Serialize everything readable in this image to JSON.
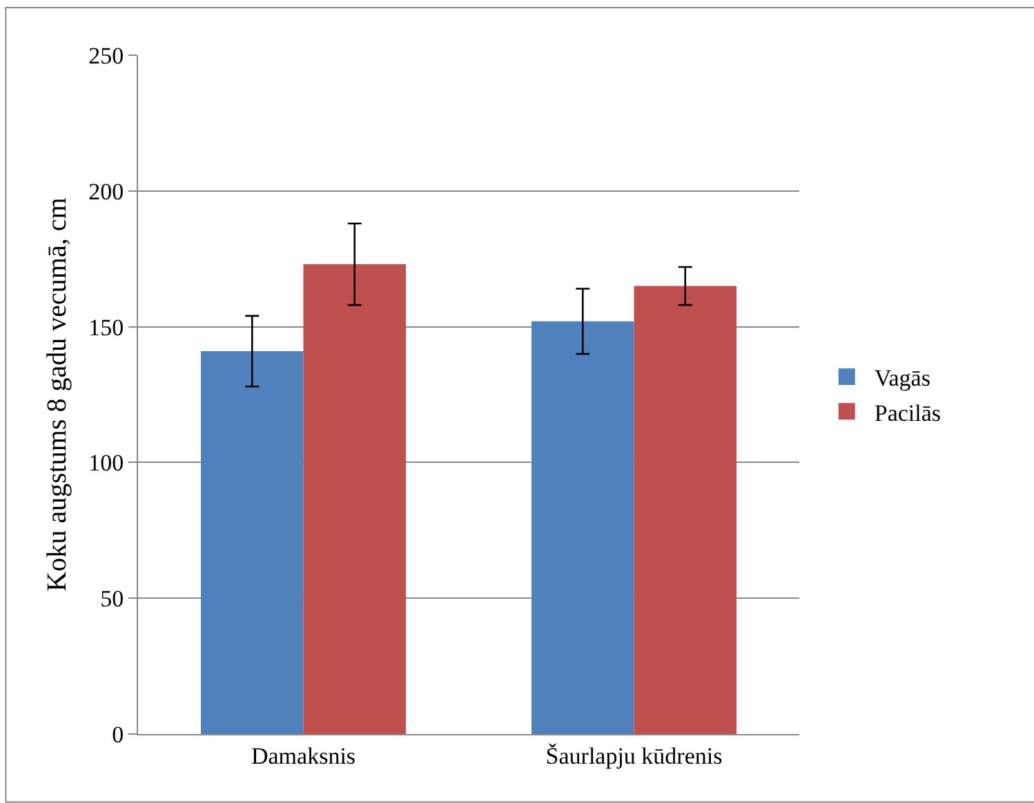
{
  "chart_data": {
    "type": "bar",
    "ylabel": "Koku augstums 8 gadu vecumā, cm",
    "categories": [
      "Damaksnis",
      "Šaurlapju kūdrenis"
    ],
    "series": [
      {
        "name": "Vagās",
        "color": "#4f81bd",
        "values": [
          141,
          152
        ],
        "errors": [
          13,
          12
        ]
      },
      {
        "name": "Pacilās",
        "color": "#c0504d",
        "values": [
          173,
          165
        ],
        "errors": [
          15,
          7
        ]
      }
    ],
    "ylim": [
      0,
      250
    ],
    "yticks": [
      0,
      50,
      100,
      150,
      200,
      250
    ],
    "grid": "y",
    "legend": "right"
  }
}
